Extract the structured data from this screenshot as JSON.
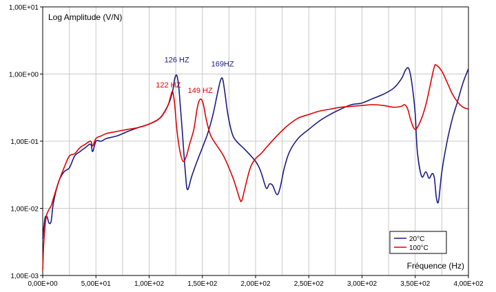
{
  "chart_data": {
    "type": "line",
    "ylabel": "Log Amplitude (V/N)",
    "xlabel": "Fréquence (Hz)",
    "y_scale": "log",
    "ylim": [
      0.001,
      10
    ],
    "xlim": [
      0,
      400
    ],
    "grid": true,
    "legend_position": "bottom-right",
    "x_ticks": [
      0,
      50,
      100,
      150,
      200,
      250,
      300,
      350,
      400
    ],
    "x_tick_labels": [
      "0,00E+00",
      "5,00E+01",
      "1,00E+02",
      "1,50E+02",
      "2,00E+02",
      "2,50E+02",
      "3,00E+02",
      "3,50E+02",
      "4,00E+02"
    ],
    "y_ticks": [
      0.001,
      0.01,
      0.1,
      1,
      10
    ],
    "y_tick_labels": [
      "1,00E-03",
      "1,00E-02",
      "1,00E-01",
      "1,00E+00",
      "1,00E+01"
    ],
    "series": [
      {
        "name": "20°C",
        "color": "#1a1a80",
        "x": [
          0,
          2,
          4,
          6,
          8,
          10,
          15,
          20,
          25,
          30,
          35,
          40,
          45,
          47,
          50,
          55,
          60,
          70,
          80,
          90,
          100,
          110,
          118,
          122,
          124,
          126,
          128,
          131,
          134,
          136,
          140,
          145,
          150,
          155,
          160,
          164,
          167,
          169,
          171,
          174,
          178,
          182,
          190,
          200,
          205,
          210,
          213,
          216,
          220,
          223,
          227,
          232,
          240,
          250,
          260,
          270,
          280,
          290,
          300,
          310,
          320,
          330,
          337,
          341,
          344,
          347,
          350,
          352,
          356,
          360,
          363,
          366,
          368,
          370,
          372,
          375,
          380,
          385,
          390,
          395,
          400
        ],
        "y": [
          0.0035,
          0.007,
          0.0075,
          0.006,
          0.0065,
          0.012,
          0.025,
          0.035,
          0.04,
          0.06,
          0.07,
          0.08,
          0.09,
          0.07,
          0.1,
          0.1,
          0.11,
          0.12,
          0.14,
          0.16,
          0.18,
          0.22,
          0.35,
          0.55,
          0.85,
          0.95,
          0.6,
          0.15,
          0.035,
          0.019,
          0.03,
          0.05,
          0.08,
          0.13,
          0.25,
          0.5,
          0.8,
          0.85,
          0.55,
          0.25,
          0.13,
          0.1,
          0.075,
          0.05,
          0.035,
          0.02,
          0.023,
          0.022,
          0.016,
          0.02,
          0.04,
          0.07,
          0.11,
          0.15,
          0.2,
          0.25,
          0.3,
          0.35,
          0.37,
          0.43,
          0.5,
          0.62,
          0.85,
          1.15,
          1.2,
          0.7,
          0.25,
          0.07,
          0.03,
          0.035,
          0.028,
          0.033,
          0.028,
          0.014,
          0.013,
          0.035,
          0.1,
          0.22,
          0.4,
          0.75,
          1.2
        ]
      },
      {
        "name": "100°C",
        "color": "#e00000",
        "x": [
          0,
          1,
          3,
          5,
          8,
          10,
          15,
          20,
          25,
          30,
          35,
          40,
          45,
          47,
          50,
          55,
          60,
          70,
          80,
          90,
          100,
          110,
          115,
          118,
          120,
          122,
          124,
          126,
          129,
          132,
          135,
          138,
          142,
          145,
          147,
          149,
          151,
          154,
          158,
          165,
          170,
          175,
          180,
          185,
          187,
          190,
          195,
          200,
          205,
          210,
          220,
          230,
          240,
          250,
          260,
          270,
          280,
          290,
          300,
          310,
          320,
          330,
          337,
          340,
          343,
          346,
          350,
          355,
          360,
          365,
          368,
          370,
          375,
          380,
          385,
          390,
          395,
          400
        ],
        "y": [
          0.0012,
          0.003,
          0.007,
          0.009,
          0.011,
          0.014,
          0.025,
          0.04,
          0.06,
          0.065,
          0.08,
          0.09,
          0.1,
          0.085,
          0.11,
          0.12,
          0.13,
          0.14,
          0.15,
          0.16,
          0.18,
          0.22,
          0.28,
          0.35,
          0.45,
          0.55,
          0.35,
          0.15,
          0.07,
          0.05,
          0.06,
          0.09,
          0.15,
          0.3,
          0.4,
          0.42,
          0.35,
          0.2,
          0.12,
          0.08,
          0.06,
          0.04,
          0.025,
          0.014,
          0.013,
          0.02,
          0.04,
          0.055,
          0.065,
          0.08,
          0.12,
          0.17,
          0.22,
          0.25,
          0.28,
          0.3,
          0.32,
          0.33,
          0.34,
          0.35,
          0.34,
          0.32,
          0.33,
          0.35,
          0.3,
          0.2,
          0.15,
          0.2,
          0.35,
          0.8,
          1.3,
          1.35,
          1.1,
          0.75,
          0.5,
          0.38,
          0.32,
          0.3
        ]
      }
    ],
    "annotations": [
      {
        "text": "126 HZ",
        "x": 126,
        "y": 1.5,
        "color": "#1a1a80"
      },
      {
        "text": "169HZ",
        "x": 169,
        "y": 1.3,
        "color": "#1a1a80"
      },
      {
        "text": "122 HZ",
        "x": 118,
        "y": 0.63,
        "color": "#e00000"
      },
      {
        "text": "149 HZ",
        "x": 148,
        "y": 0.52,
        "color": "#e00000"
      }
    ]
  }
}
